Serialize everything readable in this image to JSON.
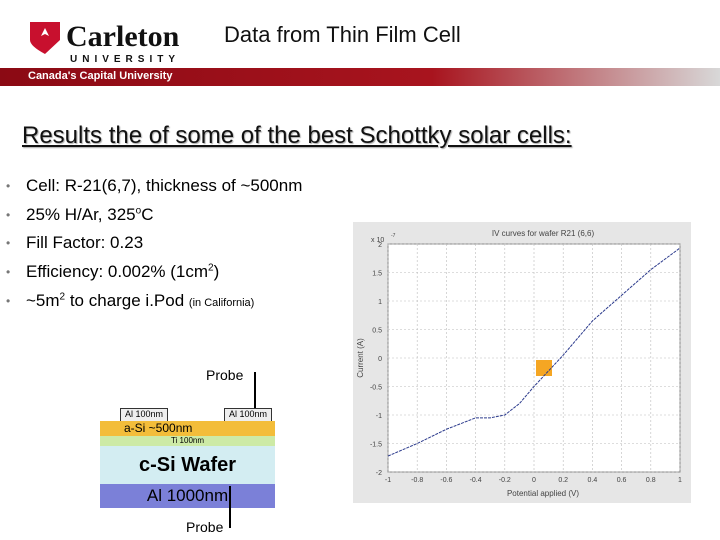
{
  "header": {
    "logo_name": "Carleton",
    "logo_sub": "UNIVERSITY",
    "tagline": "Canada's Capital University",
    "title": "Data from Thin Film Cell"
  },
  "heading": "Results the of some of the best Schottky solar cells:",
  "bullets": [
    [
      "Cell: R-21(6,7), thickness of ~500nm"
    ],
    [
      "25% H/Ar, 325",
      "o",
      "C"
    ],
    [
      "Fill Factor: 0.23"
    ],
    [
      "Efficiency: 0.002% (1cm",
      "2",
      ")"
    ],
    [
      "~5m",
      "2",
      " to charge i.Pod ",
      "(in California)"
    ]
  ],
  "diagram": {
    "probe_top": "Probe",
    "pad_left": "Al 100nm",
    "pad_right": "Al 100nm",
    "a_si": "a-Si ~500nm",
    "ti": "Ti 100nm",
    "c_si": "c-Si Wafer",
    "al_back": "Al 1000nm",
    "probe_bottom": "Probe"
  },
  "chart_data": {
    "type": "line",
    "title": "IV curves for wafer R21 (6,6)",
    "x_label": "Potential applied (V)",
    "y_label": "Current (A)",
    "y_multiplier": "x 10",
    "y_multiplier_exp": "-7",
    "x": [
      -1,
      -0.8,
      -0.6,
      -0.4,
      -0.3,
      -0.2,
      -0.1,
      0,
      0.2,
      0.4,
      0.6,
      0.8,
      1
    ],
    "values": [
      -1.72,
      -1.5,
      -1.25,
      -1.05,
      -1.05,
      -1.0,
      -0.8,
      -0.5,
      0.05,
      0.65,
      1.1,
      1.55,
      1.93
    ],
    "color": "#2b3a8c",
    "xlim": [
      -1,
      1
    ],
    "xticks": [
      -1,
      -0.8,
      -0.6,
      -0.4,
      -0.2,
      0,
      0.2,
      0.4,
      0.6,
      0.8,
      1
    ],
    "ylim": [
      -2,
      2
    ],
    "yticks": [
      -2,
      -1.5,
      -1,
      -0.5,
      0,
      0.5,
      1,
      1.5,
      2
    ],
    "grid": true
  }
}
